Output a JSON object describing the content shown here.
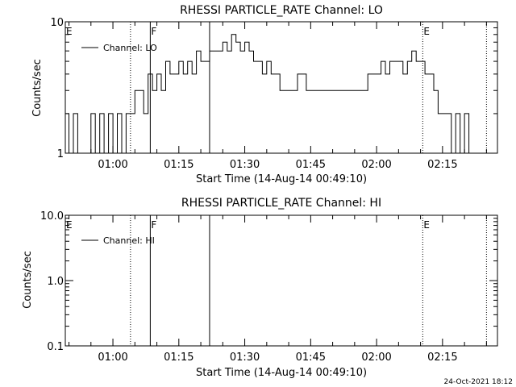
{
  "footer_timestamp": "24-Oct-2021 18:12",
  "chart_data": [
    {
      "type": "line",
      "title": "RHESSI PARTICLE_RATE Channel: LO",
      "xlabel": "Start Time (14-Aug-14 00:49:10)",
      "ylabel": "Counts/sec",
      "yscale": "log",
      "ylim": [
        1,
        10
      ],
      "xlim": [
        "00:49:10",
        "02:27:30"
      ],
      "xticks": [
        "01:00",
        "01:15",
        "01:30",
        "01:45",
        "02:00",
        "02:15"
      ],
      "yticks": [
        "1",
        "10"
      ],
      "legend": {
        "label": "Channel: LO",
        "position": "top-left"
      },
      "markers": [
        {
          "label": "E",
          "time": "00:49:10",
          "style": "none"
        },
        {
          "label": "",
          "time": "01:04:00",
          "style": "dotted"
        },
        {
          "label": "F",
          "time": "01:08:30",
          "style": "solid"
        },
        {
          "label": "",
          "time": "01:22:00",
          "style": "solid"
        },
        {
          "label": "E",
          "time": "02:10:30",
          "style": "dotted"
        },
        {
          "label": "",
          "time": "02:25:00",
          "style": "dotted"
        }
      ],
      "series": [
        {
          "name": "Channel: LO",
          "x": [
            "00:49:10",
            "00:50:00",
            "00:51:00",
            "00:52:00",
            "00:53:00",
            "00:54:00",
            "00:55:00",
            "00:56:00",
            "00:57:00",
            "00:58:00",
            "00:59:00",
            "01:00:00",
            "01:01:00",
            "01:02:00",
            "01:03:00",
            "01:04:00",
            "01:05:00",
            "01:06:00",
            "01:07:00",
            "01:08:00",
            "01:09:00",
            "01:10:00",
            "01:11:00",
            "01:12:00",
            "01:13:00",
            "01:14:00",
            "01:15:00",
            "01:16:00",
            "01:17:00",
            "01:18:00",
            "01:19:00",
            "01:20:00",
            "01:21:00",
            "01:22:00",
            "01:23:00",
            "01:24:00",
            "01:25:00",
            "01:26:00",
            "01:27:00",
            "01:28:00",
            "01:29:00",
            "01:30:00",
            "01:31:00",
            "01:32:00",
            "01:33:00",
            "01:34:00",
            "01:35:00",
            "01:36:00",
            "01:37:00",
            "01:38:00",
            "01:40:00",
            "01:42:00",
            "01:44:00",
            "01:46:00",
            "01:48:00",
            "01:50:00",
            "01:52:00",
            "01:54:00",
            "01:56:00",
            "01:58:00",
            "02:00:00",
            "02:01:00",
            "02:02:00",
            "02:03:00",
            "02:04:00",
            "02:05:00",
            "02:06:00",
            "02:07:00",
            "02:08:00",
            "02:09:00",
            "02:10:00",
            "02:11:00",
            "02:12:00",
            "02:13:00",
            "02:14:00",
            "02:15:00",
            "02:16:00",
            "02:17:00",
            "02:18:00",
            "02:19:00",
            "02:20:00",
            "02:21:00",
            "02:22:00"
          ],
          "y": [
            2,
            1,
            2,
            1,
            1,
            1,
            2,
            1,
            2,
            1,
            2,
            1,
            2,
            1,
            2,
            2,
            3,
            3,
            2,
            4,
            3,
            4,
            3,
            5,
            4,
            4,
            5,
            4,
            5,
            4,
            6,
            5,
            5,
            6,
            6,
            6,
            7,
            6,
            8,
            7,
            6,
            7,
            6,
            5,
            5,
            4,
            5,
            4,
            4,
            3,
            3,
            4,
            3,
            3,
            3,
            3,
            3,
            3,
            3,
            4,
            4,
            5,
            4,
            5,
            5,
            5,
            4,
            5,
            6,
            5,
            5,
            4,
            4,
            3,
            2,
            2,
            2,
            1,
            2,
            1,
            2,
            1,
            1
          ]
        }
      ]
    },
    {
      "type": "line",
      "title": "RHESSI PARTICLE_RATE Channel: HI",
      "xlabel": "Start Time (14-Aug-14 00:49:10)",
      "ylabel": "Counts/sec",
      "yscale": "log",
      "ylim": [
        0.1,
        10
      ],
      "xlim": [
        "00:49:10",
        "02:27:30"
      ],
      "xticks": [
        "01:00",
        "01:15",
        "01:30",
        "01:45",
        "02:00",
        "02:15"
      ],
      "yticks": [
        "0.1",
        "1.0",
        "10.0"
      ],
      "legend": {
        "label": "Channel: HI",
        "position": "top-left"
      },
      "markers": [
        {
          "label": "E",
          "time": "00:49:10",
          "style": "none"
        },
        {
          "label": "",
          "time": "01:04:00",
          "style": "dotted"
        },
        {
          "label": "F",
          "time": "01:08:30",
          "style": "solid"
        },
        {
          "label": "",
          "time": "01:22:00",
          "style": "solid"
        },
        {
          "label": "E",
          "time": "02:10:30",
          "style": "dotted"
        },
        {
          "label": "",
          "time": "02:25:00",
          "style": "dotted"
        }
      ],
      "series": [
        {
          "name": "Channel: HI",
          "x": [],
          "y": []
        }
      ]
    }
  ]
}
